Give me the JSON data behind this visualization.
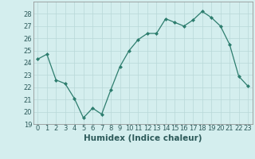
{
  "x": [
    0,
    1,
    2,
    3,
    4,
    5,
    6,
    7,
    8,
    9,
    10,
    11,
    12,
    13,
    14,
    15,
    16,
    17,
    18,
    19,
    20,
    21,
    22,
    23
  ],
  "y": [
    24.3,
    24.7,
    22.6,
    22.3,
    21.1,
    19.5,
    20.3,
    19.8,
    21.8,
    23.7,
    25.0,
    25.9,
    26.4,
    26.4,
    27.6,
    27.3,
    27.0,
    27.5,
    28.2,
    27.7,
    27.0,
    25.5,
    22.9,
    22.1
  ],
  "xlabel": "Humidex (Indice chaleur)",
  "xlim": [
    -0.5,
    23.5
  ],
  "ylim": [
    19,
    29
  ],
  "yticks": [
    19,
    20,
    21,
    22,
    23,
    24,
    25,
    26,
    27,
    28
  ],
  "xticks": [
    0,
    1,
    2,
    3,
    4,
    5,
    6,
    7,
    8,
    9,
    10,
    11,
    12,
    13,
    14,
    15,
    16,
    17,
    18,
    19,
    20,
    21,
    22,
    23
  ],
  "line_color": "#2d7d6e",
  "marker": "D",
  "marker_size": 2.0,
  "bg_color": "#d4eeee",
  "grid_color": "#b8d8d8",
  "label_fontsize": 7.5,
  "tick_fontsize": 6.0
}
